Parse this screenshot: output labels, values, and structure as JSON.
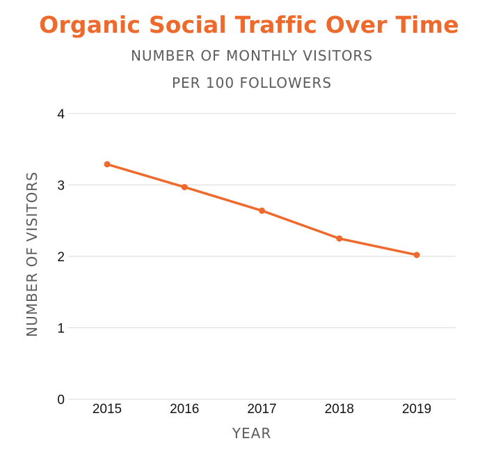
{
  "colors": {
    "series": "#ee6a2c",
    "title": "#ee6a2c",
    "subtitle": "#5b5b5b",
    "grid": "#d9d9d9"
  },
  "chart_data": {
    "type": "line",
    "title": "Organic Social Traffic Over Time",
    "subtitle_lines": [
      "NUMBER OF MONTHLY VISITORS",
      "PER 100 FOLLOWERS"
    ],
    "xlabel": "YEAR",
    "ylabel": "NUMBER OF VISITORS",
    "x": [
      "2015",
      "2016",
      "2017",
      "2018",
      "2019"
    ],
    "series": [
      {
        "values": [
          3.29,
          2.97,
          2.64,
          2.25,
          2.02
        ]
      }
    ],
    "ylim": [
      0,
      4
    ],
    "yticks": [
      "0",
      "1",
      "2",
      "3",
      "4"
    ],
    "grid": true,
    "legend": "none"
  }
}
